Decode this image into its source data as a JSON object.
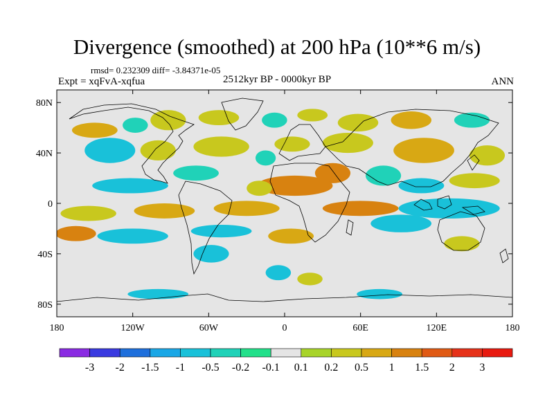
{
  "chart_data": {
    "type": "heatmap",
    "title": "Divergence (smoothed) at 200 hPa (10**6 m/s)",
    "stats_label": "rmsd= 0.232309 diff= -3.84371e-05",
    "experiment_label": "Expt = xqFvA-xqfua",
    "period_label": "2512kyr BP - 0000kyr BP",
    "season_label": "ANN",
    "xlim": [
      -180,
      180
    ],
    "ylim": [
      -90,
      90
    ],
    "x_ticks": [
      {
        "value": -180,
        "label": "180"
      },
      {
        "value": -120,
        "label": "120W"
      },
      {
        "value": -60,
        "label": "60W"
      },
      {
        "value": 0,
        "label": "0"
      },
      {
        "value": 60,
        "label": "60E"
      },
      {
        "value": 120,
        "label": "120E"
      },
      {
        "value": 180,
        "label": "180"
      }
    ],
    "y_ticks": [
      {
        "value": 80,
        "label": "80N"
      },
      {
        "value": 40,
        "label": "40N"
      },
      {
        "value": 0,
        "label": "0"
      },
      {
        "value": -40,
        "label": "40S"
      },
      {
        "value": -80,
        "label": "80S"
      }
    ],
    "colorbar": {
      "levels": [
        "-3",
        "-2",
        "-1.5",
        "-1",
        "-0.5",
        "-0.2",
        "-0.1",
        "0.1",
        "0.2",
        "0.5",
        "1",
        "1.5",
        "2",
        "3"
      ],
      "colors": [
        "#8a2be2",
        "#3a3ae0",
        "#1e6fdc",
        "#1aa7e6",
        "#19c1d9",
        "#20d2b8",
        "#22e08a",
        "#e5e5e5",
        "#a8d42a",
        "#c8c81e",
        "#d8a814",
        "#d88210",
        "#e05a14",
        "#e6321a",
        "#e81a10"
      ]
    },
    "anomaly_regions": [
      {
        "lon": -150,
        "lat": 58,
        "rx": 18,
        "ry": 6,
        "bin": 10
      },
      {
        "lon": -118,
        "lat": 62,
        "rx": 10,
        "ry": 6,
        "bin": 5
      },
      {
        "lon": -92,
        "lat": 66,
        "rx": 14,
        "ry": 8,
        "bin": 9
      },
      {
        "lon": -52,
        "lat": 68,
        "rx": 16,
        "ry": 6,
        "bin": 9
      },
      {
        "lon": -8,
        "lat": 66,
        "rx": 10,
        "ry": 6,
        "bin": 5
      },
      {
        "lon": 22,
        "lat": 70,
        "rx": 12,
        "ry": 5,
        "bin": 9
      },
      {
        "lon": 58,
        "lat": 64,
        "rx": 16,
        "ry": 7,
        "bin": 9
      },
      {
        "lon": 100,
        "lat": 66,
        "rx": 16,
        "ry": 7,
        "bin": 10
      },
      {
        "lon": 148,
        "lat": 66,
        "rx": 14,
        "ry": 6,
        "bin": 5
      },
      {
        "lon": -138,
        "lat": 42,
        "rx": 20,
        "ry": 10,
        "bin": 4
      },
      {
        "lon": -100,
        "lat": 42,
        "rx": 14,
        "ry": 8,
        "bin": 9
      },
      {
        "lon": -50,
        "lat": 45,
        "rx": 22,
        "ry": 8,
        "bin": 9
      },
      {
        "lon": -15,
        "lat": 36,
        "rx": 8,
        "ry": 6,
        "bin": 5
      },
      {
        "lon": 6,
        "lat": 47,
        "rx": 14,
        "ry": 6,
        "bin": 9
      },
      {
        "lon": 50,
        "lat": 48,
        "rx": 20,
        "ry": 8,
        "bin": 9
      },
      {
        "lon": 110,
        "lat": 42,
        "rx": 24,
        "ry": 10,
        "bin": 10
      },
      {
        "lon": 160,
        "lat": 38,
        "rx": 14,
        "ry": 8,
        "bin": 9
      },
      {
        "lon": 38,
        "lat": 24,
        "rx": 14,
        "ry": 8,
        "bin": 11
      },
      {
        "lon": 8,
        "lat": 14,
        "rx": 30,
        "ry": 8,
        "bin": 11
      },
      {
        "lon": -20,
        "lat": 12,
        "rx": 10,
        "ry": 6,
        "bin": 9
      },
      {
        "lon": -70,
        "lat": 24,
        "rx": 18,
        "ry": 6,
        "bin": 5
      },
      {
        "lon": -122,
        "lat": 14,
        "rx": 30,
        "ry": 6,
        "bin": 4
      },
      {
        "lon": 78,
        "lat": 22,
        "rx": 14,
        "ry": 8,
        "bin": 5
      },
      {
        "lon": 108,
        "lat": 14,
        "rx": 18,
        "ry": 6,
        "bin": 4
      },
      {
        "lon": 150,
        "lat": 18,
        "rx": 20,
        "ry": 6,
        "bin": 9
      },
      {
        "lon": -155,
        "lat": -8,
        "rx": 22,
        "ry": 6,
        "bin": 9
      },
      {
        "lon": -95,
        "lat": -6,
        "rx": 24,
        "ry": 6,
        "bin": 10
      },
      {
        "lon": -30,
        "lat": -4,
        "rx": 26,
        "ry": 6,
        "bin": 10
      },
      {
        "lon": 60,
        "lat": -4,
        "rx": 30,
        "ry": 6,
        "bin": 11
      },
      {
        "lon": 130,
        "lat": -4,
        "rx": 40,
        "ry": 8,
        "bin": 4
      },
      {
        "lon": 92,
        "lat": -16,
        "rx": 24,
        "ry": 7,
        "bin": 4
      },
      {
        "lon": -165,
        "lat": -24,
        "rx": 16,
        "ry": 6,
        "bin": 11
      },
      {
        "lon": -120,
        "lat": -26,
        "rx": 28,
        "ry": 6,
        "bin": 4
      },
      {
        "lon": -50,
        "lat": -22,
        "rx": 24,
        "ry": 5,
        "bin": 4
      },
      {
        "lon": 5,
        "lat": -26,
        "rx": 18,
        "ry": 6,
        "bin": 10
      },
      {
        "lon": 140,
        "lat": -32,
        "rx": 14,
        "ry": 6,
        "bin": 9
      },
      {
        "lon": -58,
        "lat": -40,
        "rx": 14,
        "ry": 7,
        "bin": 4
      },
      {
        "lon": -5,
        "lat": -55,
        "rx": 10,
        "ry": 6,
        "bin": 4
      },
      {
        "lon": 20,
        "lat": -60,
        "rx": 10,
        "ry": 5,
        "bin": 9
      },
      {
        "lon": -100,
        "lat": -72,
        "rx": 24,
        "ry": 4,
        "bin": 4
      },
      {
        "lon": 75,
        "lat": -72,
        "rx": 18,
        "ry": 4,
        "bin": 4
      }
    ]
  }
}
